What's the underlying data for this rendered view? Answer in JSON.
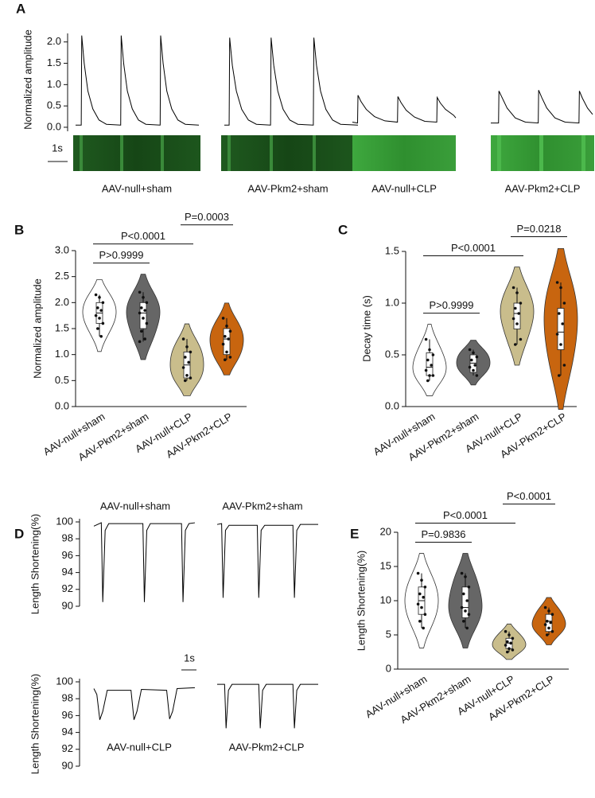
{
  "chart_data": [
    {
      "type": "trace",
      "panel": "A",
      "ylabel": "Normalized amplitude",
      "ylim": [
        -0.15,
        2.2
      ],
      "yticks": [
        {
          "value": 0,
          "label": "0.0"
        },
        0.5,
        {
          "value": 1,
          "label": "1.0"
        },
        1.5,
        {
          "value": 2,
          "label": "2.0"
        }
      ],
      "scale_bar_label": "1s",
      "color": "#000000",
      "series": [
        {
          "name": "AAV-null+sham",
          "x": [
            0,
            0.23,
            0.25,
            0.35,
            0.5,
            0.7,
            0.95,
            1.25,
            1.83,
            1.85,
            1.95,
            2.1,
            2.3,
            2.55,
            2.85,
            3.43,
            3.45,
            3.55,
            3.7,
            3.9,
            4.15,
            4.45,
            5
          ],
          "y": [
            0.05,
            0.05,
            2.15,
            1.5,
            0.85,
            0.43,
            0.17,
            0.07,
            0.05,
            2.15,
            1.5,
            0.85,
            0.43,
            0.17,
            0.07,
            0.05,
            2.15,
            1.5,
            0.85,
            0.43,
            0.17,
            0.07,
            0.05
          ]
        },
        {
          "name": "AAV-Pkm2+sham",
          "x": [
            0,
            0.18,
            0.2,
            0.3,
            0.45,
            0.65,
            0.9,
            1.2,
            1.73,
            1.75,
            1.85,
            2.0,
            2.2,
            2.45,
            2.75,
            3.33,
            3.35,
            3.45,
            3.6,
            3.8,
            4.05,
            4.35,
            5
          ],
          "y": [
            0.05,
            0.05,
            2.1,
            1.45,
            0.85,
            0.42,
            0.17,
            0.07,
            0.05,
            2.1,
            1.45,
            0.85,
            0.42,
            0.17,
            0.07,
            0.05,
            2.1,
            1.45,
            0.85,
            0.42,
            0.17,
            0.07,
            0.05
          ]
        },
        {
          "name": "AAV-null+CLP",
          "x": [
            0,
            0.25,
            0.27,
            0.42,
            0.67,
            1.07,
            1.57,
            2.18,
            2.2,
            2.35,
            2.6,
            3.0,
            3.5,
            4.08,
            4.1,
            4.25,
            4.5,
            4.9,
            5
          ],
          "y": [
            0.12,
            0.1,
            0.75,
            0.6,
            0.42,
            0.25,
            0.15,
            0.12,
            0.72,
            0.58,
            0.4,
            0.24,
            0.14,
            0.12,
            0.7,
            0.57,
            0.42,
            0.28,
            0.22
          ]
        },
        {
          "name": "AAV-Pkm2+CLP",
          "x": [
            0,
            0.38,
            0.4,
            0.55,
            0.8,
            1.2,
            1.7,
            2.33,
            2.35,
            2.5,
            2.75,
            3.15,
            3.65,
            4.33,
            4.35,
            4.5,
            4.75,
            5
          ],
          "y": [
            0.1,
            0.1,
            0.85,
            0.7,
            0.45,
            0.22,
            0.12,
            0.1,
            0.87,
            0.7,
            0.45,
            0.22,
            0.12,
            0.1,
            0.85,
            0.68,
            0.45,
            0.3
          ]
        }
      ]
    },
    {
      "type": "violin",
      "panel": "B",
      "ylabel": "Normalized amplitude",
      "ylim": [
        0,
        3
      ],
      "yticks": [
        {
          "value": 0,
          "label": "0.0"
        },
        0.5,
        {
          "value": 1,
          "label": "1.0"
        },
        1.5,
        {
          "value": 2,
          "label": "2.0"
        },
        2.5,
        {
          "value": 3,
          "label": "3.0"
        }
      ],
      "categories": [
        "AAV-null+sham",
        "AAV-Pkm2+sham",
        "AAV-null+CLP",
        "AAV-Pkm2+CLP"
      ],
      "groups": [
        {
          "color": "#ffffff",
          "points": [
            2.15,
            2.1,
            2.0,
            1.9,
            1.85,
            1.75,
            1.7,
            1.6,
            1.5,
            1.35
          ],
          "min": 1.35,
          "q1": 1.6,
          "median": 1.8,
          "q3": 2.0,
          "max": 2.15
        },
        {
          "color": "#666666",
          "points": [
            2.2,
            2.1,
            2.0,
            1.9,
            1.85,
            1.8,
            1.7,
            1.6,
            1.45,
            1.3,
            1.25
          ],
          "min": 1.25,
          "q1": 1.5,
          "median": 1.8,
          "q3": 2.0,
          "max": 2.2
        },
        {
          "color": "#c9bd8c",
          "points": [
            1.3,
            1.15,
            1.05,
            0.95,
            0.85,
            0.75,
            0.6,
            0.55,
            0.5
          ],
          "min": 0.5,
          "q1": 0.55,
          "median": 0.8,
          "q3": 1.05,
          "max": 1.3
        },
        {
          "color": "#c8650f",
          "points": [
            1.7,
            1.55,
            1.45,
            1.35,
            1.3,
            1.2,
            1.05,
            0.95,
            0.9
          ],
          "min": 0.9,
          "q1": 1.0,
          "median": 1.3,
          "q3": 1.5,
          "max": 1.7
        }
      ],
      "comparisons": [
        {
          "from": 0,
          "to": 1,
          "label": "P>0.9999"
        },
        {
          "from": 0,
          "to": 2,
          "label": "P<0.0001"
        },
        {
          "from": 2,
          "to": 3,
          "label": "P=0.0003"
        }
      ]
    },
    {
      "type": "violin",
      "panel": "C",
      "ylabel": "Decay time (s)",
      "ylim": [
        0,
        1.5
      ],
      "yticks": [
        {
          "value": 0,
          "label": "0.0"
        },
        0.5,
        {
          "value": 1,
          "label": "1.0"
        },
        1.5
      ],
      "categories": [
        "AAV-null+sham",
        "AAV-Pkm2+sham",
        "AAV-null+CLP",
        "AAV-Pkm2+CLP"
      ],
      "groups": [
        {
          "color": "#ffffff",
          "points": [
            0.65,
            0.55,
            0.5,
            0.45,
            0.4,
            0.35,
            0.3,
            0.3,
            0.25
          ],
          "min": 0.25,
          "q1": 0.3,
          "median": 0.38,
          "q3": 0.52,
          "max": 0.65
        },
        {
          "color": "#666666",
          "points": [
            0.55,
            0.52,
            0.48,
            0.45,
            0.4,
            0.38,
            0.35,
            0.3
          ],
          "min": 0.3,
          "q1": 0.33,
          "median": 0.42,
          "q3": 0.5,
          "max": 0.55
        },
        {
          "color": "#c9bd8c",
          "points": [
            1.15,
            1.1,
            1.0,
            0.95,
            0.9,
            0.85,
            0.8,
            0.65,
            0.6
          ],
          "min": 0.6,
          "q1": 0.75,
          "median": 0.9,
          "q3": 1.0,
          "max": 1.15
        },
        {
          "color": "#c8650f",
          "points": [
            1.2,
            1.15,
            1.0,
            0.9,
            0.8,
            0.7,
            0.6,
            0.4,
            0.3
          ],
          "min": 0.3,
          "q1": 0.55,
          "median": 0.72,
          "q3": 0.95,
          "max": 1.2
        }
      ],
      "comparisons": [
        {
          "from": 0,
          "to": 1,
          "label": "P>0.9999"
        },
        {
          "from": 0,
          "to": 2,
          "label": "P<0.0001"
        },
        {
          "from": 2,
          "to": 3,
          "label": "P=0.0218"
        }
      ]
    },
    {
      "type": "trace",
      "panel": "D",
      "ylabel": "Length Shortening(%)",
      "ylim": [
        90,
        100
      ],
      "yticks": [
        90,
        92,
        94,
        96,
        98,
        100
      ],
      "scale_bar_label": "1s",
      "color": "#000000",
      "series": [
        {
          "name": "AAV-null+sham",
          "x": [
            0,
            0.25,
            0.3,
            0.38,
            0.5,
            1.65,
            1.7,
            1.78,
            1.9,
            2.95,
            3.0,
            3.08,
            3.2,
            3.4
          ],
          "y": [
            99.5,
            99.9,
            90.5,
            99.0,
            99.8,
            99.8,
            90.5,
            99.0,
            99.8,
            99.8,
            90.5,
            99.0,
            99.8,
            99.9
          ]
        },
        {
          "name": "AAV-Pkm2+sham",
          "x": [
            0,
            0.15,
            0.2,
            0.28,
            0.4,
            1.35,
            1.4,
            1.48,
            1.6,
            2.55,
            2.6,
            2.68,
            2.8,
            3.4
          ],
          "y": [
            99.7,
            99.8,
            91.0,
            99.0,
            99.6,
            99.6,
            91.0,
            99.0,
            99.6,
            99.6,
            91.0,
            99.0,
            99.7,
            99.7
          ]
        }
      ]
    },
    {
      "type": "trace",
      "ylabel": "Length Shortening(%)",
      "ylim": [
        90,
        100
      ],
      "yticks": [
        90,
        92,
        94,
        96,
        98,
        100
      ],
      "color": "#000000",
      "series": [
        {
          "name": "AAV-null+CLP",
          "x": [
            0,
            0.1,
            0.2,
            0.3,
            0.45,
            1.25,
            1.35,
            1.45,
            1.6,
            2.45,
            2.55,
            2.65,
            2.8,
            3.4
          ],
          "y": [
            99.2,
            98.5,
            95.5,
            96.5,
            99.0,
            99.0,
            95.5,
            96.5,
            99.1,
            99.0,
            95.6,
            96.5,
            99.2,
            99.3
          ]
        },
        {
          "name": "AAV-Pkm2+CLP",
          "x": [
            0,
            0.25,
            0.3,
            0.38,
            0.5,
            1.4,
            1.45,
            1.53,
            1.65,
            2.55,
            2.6,
            2.68,
            2.8,
            3.4
          ],
          "y": [
            99.7,
            99.7,
            94.5,
            99.0,
            99.7,
            99.7,
            94.5,
            99.0,
            99.7,
            99.7,
            94.5,
            99.0,
            99.7,
            99.7
          ]
        }
      ]
    },
    {
      "type": "violin",
      "panel": "E",
      "ylabel": "Length Shortening(%)",
      "ylim": [
        0,
        20
      ],
      "yticks": [
        0,
        5,
        10,
        15,
        20
      ],
      "categories": [
        "AAV-null+sham",
        "AAV-Pkm2+sham",
        "AAV-null+CLP",
        "AAV-Pkm2+CLP"
      ],
      "groups": [
        {
          "color": "#ffffff",
          "points": [
            14,
            13,
            12,
            11,
            10.5,
            9.5,
            9,
            8,
            7,
            6
          ],
          "min": 6,
          "q1": 8,
          "median": 10,
          "q3": 12,
          "max": 14
        },
        {
          "color": "#666666",
          "points": [
            14,
            13.5,
            12,
            11,
            10,
            9,
            8.5,
            8,
            7,
            6
          ],
          "min": 6,
          "q1": 7.5,
          "median": 9,
          "q3": 12,
          "max": 14
        },
        {
          "color": "#c9bd8c",
          "points": [
            5.5,
            5,
            4.5,
            4,
            3.8,
            3.5,
            3,
            2.8,
            2.5
          ],
          "min": 2.5,
          "q1": 3,
          "median": 3.8,
          "q3": 4.5,
          "max": 5.5
        },
        {
          "color": "#c8650f",
          "points": [
            9,
            8.5,
            8,
            7,
            6.8,
            6.5,
            6,
            5.5,
            5
          ],
          "min": 5,
          "q1": 5.5,
          "median": 7,
          "q3": 8,
          "max": 9
        }
      ],
      "comparisons": [
        {
          "from": 0,
          "to": 1,
          "label": "P=0.9836"
        },
        {
          "from": 0,
          "to": 2,
          "label": "P<0.0001"
        },
        {
          "from": 2,
          "to": 3,
          "label": "P<0.0001"
        }
      ]
    }
  ]
}
